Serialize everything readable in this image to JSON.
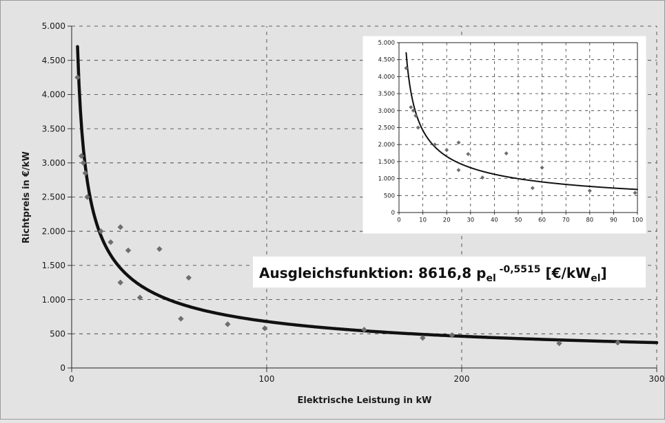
{
  "chart_data": [
    {
      "type": "scatter",
      "title": "",
      "xlabel": "Elektrische Leistung in kW",
      "ylabel": "Richtpreis in €/kW",
      "xlim": [
        0,
        300
      ],
      "ylim": [
        0,
        5000
      ],
      "x_ticks": [
        0,
        100,
        200,
        300
      ],
      "y_ticks": [
        0,
        500,
        1000,
        1500,
        2000,
        2500,
        3000,
        3500,
        4000,
        4500,
        5000
      ],
      "x_tick_labels": [
        "0",
        "100",
        "200",
        "300"
      ],
      "y_tick_labels": [
        "0",
        "500",
        "1.000",
        "1.500",
        "2.000",
        "2.500",
        "3.000",
        "3.500",
        "4.000",
        "4.500",
        "5.000"
      ],
      "grid": true,
      "series": [
        {
          "type": "scatter",
          "color": "#6e6e6e",
          "points": [
            {
              "x": 3,
              "y": 4250
            },
            {
              "x": 5,
              "y": 3100
            },
            {
              "x": 6,
              "y": 3000
            },
            {
              "x": 7,
              "y": 2850
            },
            {
              "x": 8,
              "y": 2500
            },
            {
              "x": 15,
              "y": 2000
            },
            {
              "x": 20,
              "y": 1840
            },
            {
              "x": 25,
              "y": 2060
            },
            {
              "x": 25,
              "y": 1250
            },
            {
              "x": 29,
              "y": 1720
            },
            {
              "x": 35,
              "y": 1030
            },
            {
              "x": 45,
              "y": 1740
            },
            {
              "x": 56,
              "y": 720
            },
            {
              "x": 60,
              "y": 1320
            },
            {
              "x": 80,
              "y": 640
            },
            {
              "x": 99,
              "y": 580
            },
            {
              "x": 150,
              "y": 560
            },
            {
              "x": 180,
              "y": 440
            },
            {
              "x": 195,
              "y": 480
            },
            {
              "x": 250,
              "y": 360
            },
            {
              "x": 280,
              "y": 370
            }
          ]
        },
        {
          "type": "line",
          "color": "#111111",
          "fit": {
            "a": 8616.8,
            "b": -0.5515,
            "x_from": 3,
            "x_to": 300
          }
        }
      ],
      "annotation": {
        "prefix": "Ausgleichsfunktion: 8616,8 p",
        "sub1": "el",
        "sup": " -0,5515",
        "mid": " [€/kW",
        "sub2": "el",
        "suffix": "]"
      }
    },
    {
      "type": "scatter",
      "title": "",
      "xlabel": "",
      "ylabel": "",
      "xlim": [
        0,
        100
      ],
      "ylim": [
        0,
        5000
      ],
      "x_ticks": [
        0,
        10,
        20,
        30,
        40,
        50,
        60,
        70,
        80,
        90,
        100
      ],
      "y_ticks": [
        0,
        500,
        1000,
        1500,
        2000,
        2500,
        3000,
        3500,
        4000,
        4500,
        5000
      ],
      "x_tick_labels": [
        "0",
        "10",
        "20",
        "30",
        "40",
        "50",
        "60",
        "70",
        "80",
        "90",
        "100"
      ],
      "y_tick_labels": [
        "0",
        "500",
        "1.000",
        "1.500",
        "2.000",
        "2.500",
        "3.000",
        "3.500",
        "4.000",
        "4.500",
        "5.000"
      ],
      "grid": true,
      "series": [
        {
          "type": "scatter",
          "color": "#6e6e6e",
          "points": [
            {
              "x": 3,
              "y": 4250
            },
            {
              "x": 5,
              "y": 3100
            },
            {
              "x": 6,
              "y": 3000
            },
            {
              "x": 7,
              "y": 2850
            },
            {
              "x": 8,
              "y": 2500
            },
            {
              "x": 15,
              "y": 2000
            },
            {
              "x": 20,
              "y": 1840
            },
            {
              "x": 25,
              "y": 2060
            },
            {
              "x": 25,
              "y": 1250
            },
            {
              "x": 29,
              "y": 1720
            },
            {
              "x": 35,
              "y": 1030
            },
            {
              "x": 45,
              "y": 1740
            },
            {
              "x": 56,
              "y": 720
            },
            {
              "x": 60,
              "y": 1320
            },
            {
              "x": 80,
              "y": 640
            },
            {
              "x": 99,
              "y": 580
            }
          ]
        },
        {
          "type": "line",
          "color": "#111111",
          "fit": {
            "a": 8616.8,
            "b": -0.5515,
            "x_from": 3,
            "x_to": 100
          }
        }
      ]
    }
  ]
}
